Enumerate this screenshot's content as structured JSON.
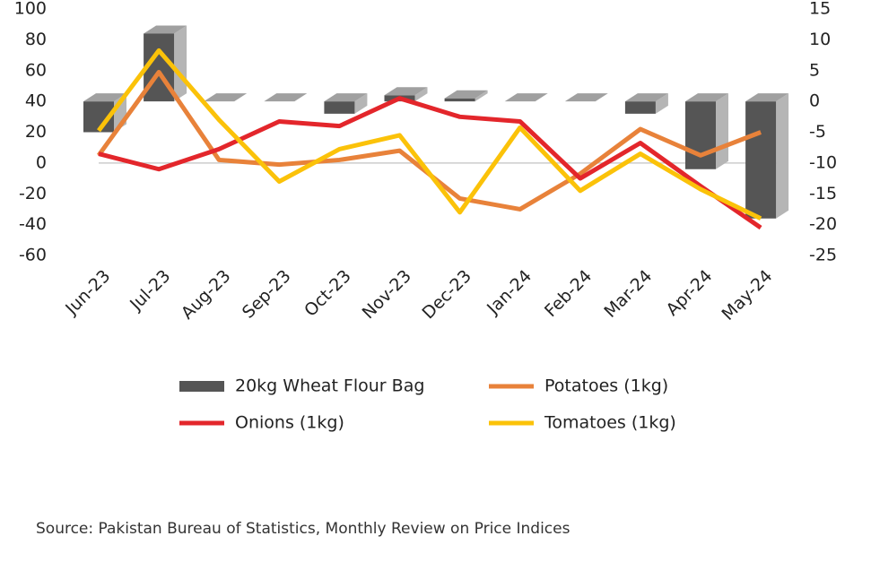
{
  "chart_data": {
    "type": "bar-line",
    "categories": [
      "Jun-23",
      "Jul-23",
      "Aug-23",
      "Sep-23",
      "Oct-23",
      "Nov-23",
      "Dec-23",
      "Jan-24",
      "Feb-24",
      "Mar-24",
      "Apr-24",
      "May-24"
    ],
    "series": [
      {
        "name": "20kg Wheat Flour Bag",
        "type": "bar",
        "axis": "y2",
        "color": "#555555",
        "values": [
          -5,
          11,
          0,
          0,
          -2,
          1,
          0.5,
          0,
          0,
          -2,
          -11,
          -19
        ]
      },
      {
        "name": "Potatoes (1kg)",
        "type": "line",
        "color": "#e8823a",
        "values": [
          5,
          59,
          2,
          -1,
          2,
          8,
          -23,
          -30,
          -7,
          22,
          5,
          20
        ]
      },
      {
        "name": "Onions (1kg)",
        "type": "line",
        "color": "#e3262b",
        "values": [
          6,
          -4,
          9,
          27,
          24,
          42,
          30,
          27,
          -10,
          13,
          -15,
          -42
        ]
      },
      {
        "name": "Tomatoes (1kg)",
        "type": "line",
        "color": "#fbc209",
        "values": [
          21,
          73,
          28,
          -12,
          9,
          18,
          -32,
          23,
          -18,
          6,
          -17,
          -36
        ]
      }
    ],
    "ylim": [
      -60,
      100
    ],
    "yticks": [
      100,
      80,
      60,
      40,
      20,
      0,
      -20,
      -40,
      -60
    ],
    "y2lim": [
      -25,
      15
    ],
    "y2ticks": [
      15,
      10,
      5,
      0,
      -5,
      -10,
      -15,
      -20,
      -25
    ],
    "source": "Source: Pakistan Bureau of Statistics, Monthly Review on Price Indices"
  }
}
